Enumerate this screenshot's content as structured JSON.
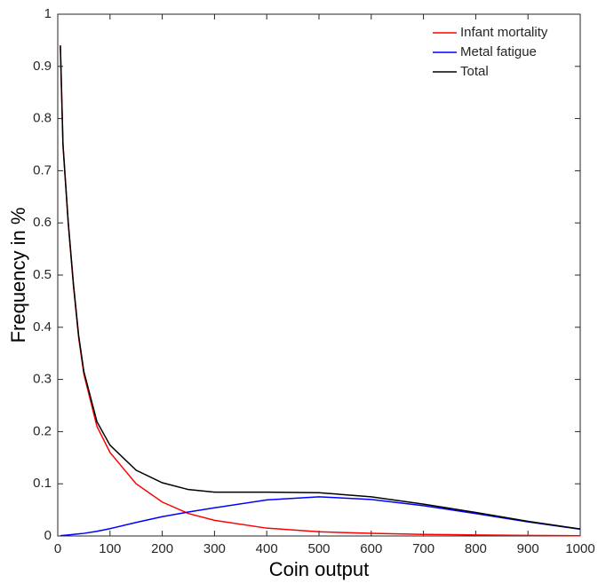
{
  "chart_data": {
    "type": "line",
    "xlabel": "Coin output",
    "ylabel": "Frequency in %",
    "x": [
      5,
      10,
      20,
      30,
      40,
      50,
      75,
      100,
      150,
      200,
      250,
      300,
      400,
      500,
      600,
      700,
      800,
      900,
      1000
    ],
    "series": [
      {
        "name": "Infant mortality",
        "color": "#ff0000",
        "values": [
          0.94,
          0.75,
          0.6,
          0.48,
          0.38,
          0.31,
          0.21,
          0.16,
          0.1,
          0.065,
          0.043,
          0.03,
          0.015,
          0.008,
          0.005,
          0.003,
          0.002,
          0.001,
          0.0005
        ]
      },
      {
        "name": "Metal fatigue",
        "color": "#0000ff",
        "values": [
          0.0005,
          0.001,
          0.002,
          0.003,
          0.004,
          0.005,
          0.009,
          0.014,
          0.026,
          0.037,
          0.046,
          0.054,
          0.069,
          0.075,
          0.07,
          0.058,
          0.043,
          0.027,
          0.013
        ]
      },
      {
        "name": "Total",
        "color": "#000000",
        "values": [
          0.94,
          0.75,
          0.602,
          0.483,
          0.384,
          0.315,
          0.219,
          0.174,
          0.126,
          0.102,
          0.089,
          0.084,
          0.084,
          0.083,
          0.075,
          0.061,
          0.045,
          0.028,
          0.0135
        ]
      }
    ],
    "xlim": [
      0,
      1000
    ],
    "xticks": [
      0,
      100,
      200,
      300,
      400,
      500,
      600,
      700,
      800,
      900,
      1000
    ],
    "ylim": [
      0,
      1
    ],
    "yticks": [
      0,
      0.1,
      0.2,
      0.3,
      0.4,
      0.5,
      0.6,
      0.7,
      0.8,
      0.9,
      1
    ],
    "legend": "upper right"
  }
}
